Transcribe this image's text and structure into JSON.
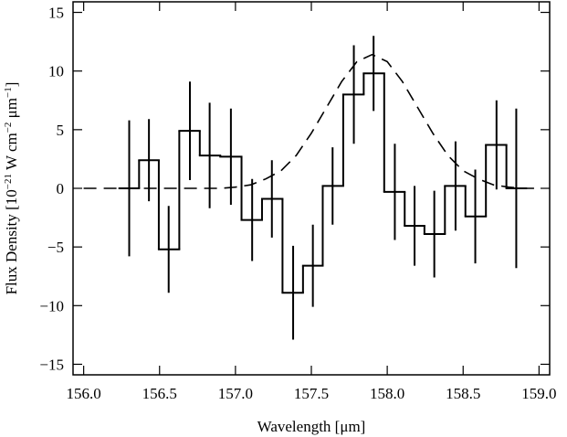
{
  "chart_data": {
    "type": "step_errorbar",
    "xlabel": "Wavelength [μm]",
    "ylabel": [
      "Flux Density [10",
      "−21",
      " W cm",
      "−2",
      " μm",
      "−1",
      "]"
    ],
    "xlim": [
      155.93,
      159.07
    ],
    "ylim": [
      -15.9,
      15.9
    ],
    "xticks": [
      {
        "value": 156,
        "label": "156.0"
      },
      {
        "value": 156.5,
        "label": "156.5"
      },
      {
        "value": 157,
        "label": "157.0"
      },
      {
        "value": 157.5,
        "label": "157.5"
      },
      {
        "value": 158,
        "label": "158.0"
      },
      {
        "value": 158.5,
        "label": "158.5"
      },
      {
        "value": 159,
        "label": "159.0"
      }
    ],
    "yticks": [
      {
        "value": -15,
        "label": "−15"
      },
      {
        "value": -10,
        "label": "−10"
      },
      {
        "value": -5,
        "label": "−5"
      },
      0,
      5,
      10,
      15
    ],
    "series": [
      {
        "color": "#000000",
        "x": [
          156.3,
          156.43,
          156.56,
          156.7,
          156.83,
          156.97,
          157.11,
          157.24,
          157.38,
          157.51,
          157.64,
          157.78,
          157.91,
          158.05,
          158.18,
          158.31,
          158.45,
          158.58,
          158.72,
          158.85
        ],
        "values": [
          0,
          2.4,
          -5.2,
          4.9,
          2.8,
          2.7,
          -2.7,
          -0.9,
          -8.9,
          -6.6,
          0.2,
          8.0,
          9.8,
          -0.3,
          -3.2,
          -3.9,
          0.2,
          -2.4,
          3.7,
          0.0
        ],
        "errors": [
          5.8,
          3.5,
          3.7,
          4.2,
          4.5,
          4.1,
          3.5,
          3.3,
          4.0,
          3.5,
          3.3,
          4.2,
          3.2,
          4.1,
          3.4,
          3.7,
          3.8,
          4.0,
          3.8,
          6.8
        ]
      },
      {
        "color": "#000000",
        "style": "dashed",
        "x": [
          156.0,
          156.1,
          156.2,
          156.3,
          156.4,
          156.5,
          156.6,
          156.7,
          156.8,
          156.9,
          157.0,
          157.1,
          157.2,
          157.3,
          157.4,
          157.5,
          157.6,
          157.7,
          157.8,
          157.9,
          158.0,
          158.1,
          158.2,
          158.3,
          158.4,
          158.5,
          158.6,
          158.7,
          158.8,
          158.9,
          159.0
        ],
        "values": [
          0,
          0,
          0,
          0,
          0,
          0,
          0,
          0,
          0,
          0,
          0.1,
          0.3,
          0.8,
          1.5,
          2.8,
          4.7,
          6.9,
          9.1,
          10.8,
          11.4,
          10.8,
          9.1,
          6.9,
          4.7,
          2.8,
          1.5,
          0.8,
          0.3,
          0.1,
          0,
          0
        ]
      }
    ]
  }
}
